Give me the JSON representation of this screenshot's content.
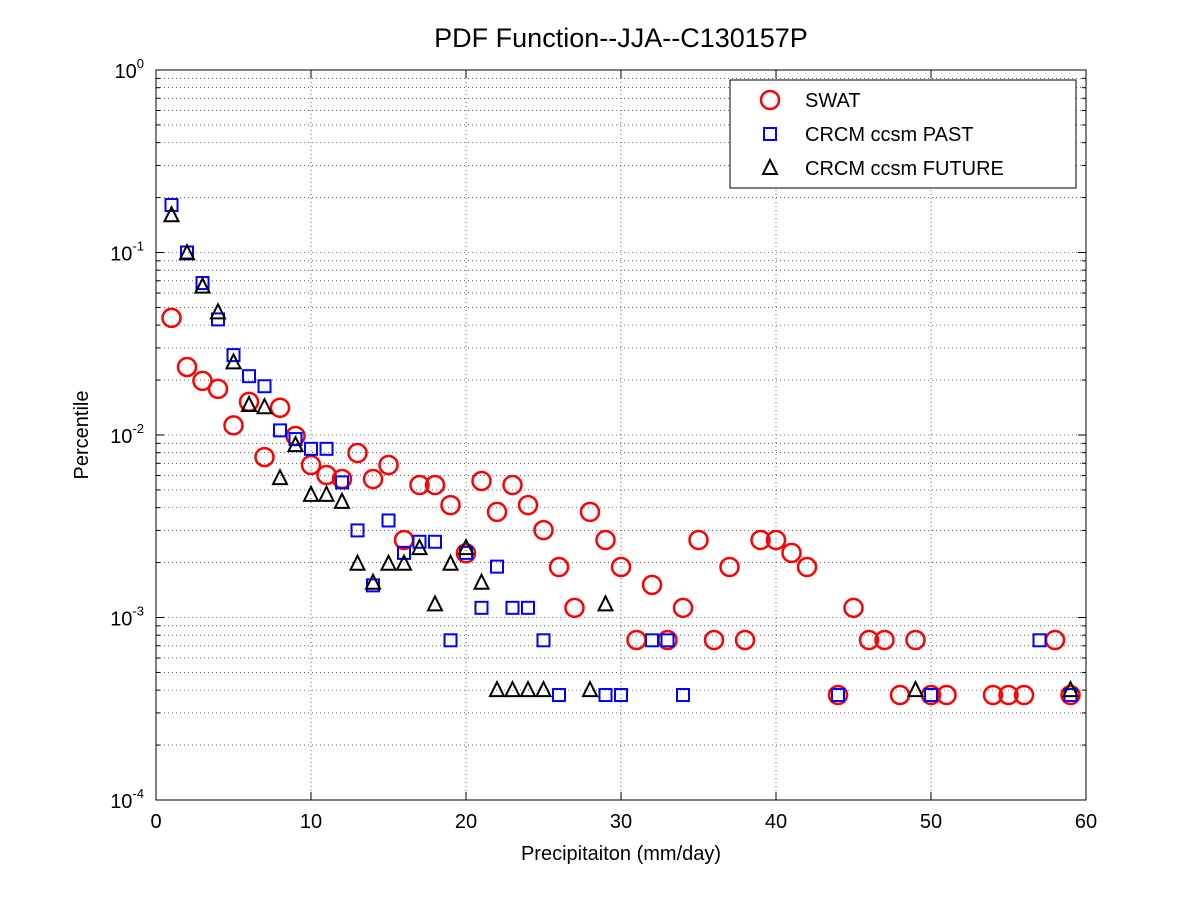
{
  "chart_data": {
    "type": "scatter",
    "title": "PDF Function--JJA--C130157P",
    "xlabel": "Precipitaiton (mm/day)",
    "ylabel": "Percentile",
    "xlim": [
      0,
      60
    ],
    "ylim": [
      0.0001,
      1
    ],
    "yscale": "log",
    "xticks": [
      "0",
      "10",
      "20",
      "30",
      "40",
      "50",
      "60"
    ],
    "yticks": [
      {
        "base": "10",
        "exp": "0"
      },
      {
        "base": "10",
        "exp": "-1"
      },
      {
        "base": "10",
        "exp": "-2"
      },
      {
        "base": "10",
        "exp": "-3"
      },
      {
        "base": "10",
        "exp": "-4"
      }
    ],
    "grid": true,
    "legend_position": "top-right",
    "series": [
      {
        "name": "SWAT",
        "marker": "circle",
        "color": "#ff0000",
        "x": [
          1,
          2,
          3,
          4,
          5,
          6,
          7,
          8,
          9,
          10,
          11,
          12,
          13,
          14,
          15,
          16,
          17,
          18,
          19,
          20,
          21,
          22,
          23,
          24,
          25,
          26,
          27,
          28,
          29,
          30,
          31,
          32,
          33,
          34,
          35,
          36,
          37,
          38,
          39,
          40,
          41,
          42,
          44,
          45,
          46,
          47,
          48,
          49,
          50,
          51,
          54,
          55,
          56,
          58,
          59
        ],
        "y": [
          0.0438,
          0.0236,
          0.0198,
          0.0179,
          0.0113,
          0.0152,
          0.00757,
          0.0141,
          0.00988,
          0.00685,
          0.00604,
          0.00574,
          0.00797,
          0.00574,
          0.00685,
          0.00266,
          0.00532,
          0.00532,
          0.00413,
          0.00225,
          0.0056,
          0.00379,
          0.00532,
          0.00413,
          0.00301,
          0.00189,
          0.00113,
          0.00379,
          0.00266,
          0.00189,
          0.000753,
          0.00151,
          0.000753,
          0.00113,
          0.00266,
          0.000753,
          0.00189,
          0.000753,
          0.00266,
          0.00266,
          0.00226,
          0.00189,
          0.000376,
          0.00113,
          0.000753,
          0.000753,
          0.000376,
          0.000753,
          0.000376,
          0.000376,
          0.000376,
          0.000376,
          0.000376,
          0.000753,
          0.000376
        ]
      },
      {
        "name": "CRCM ccsm PAST",
        "marker": "square",
        "color": "#0000ff",
        "x": [
          1,
          2,
          3,
          4,
          5,
          6,
          7,
          8,
          9,
          10,
          11,
          12,
          13,
          14,
          15,
          16,
          17,
          18,
          19,
          20,
          21,
          22,
          23,
          24,
          25,
          26,
          29,
          30,
          32,
          33,
          34,
          44,
          50,
          57,
          59
        ],
        "y": [
          0.182,
          0.1,
          0.068,
          0.043,
          0.0274,
          0.021,
          0.0185,
          0.0106,
          0.0095,
          0.0084,
          0.0084,
          0.0055,
          0.003,
          0.0015,
          0.0034,
          0.00226,
          0.0026,
          0.0026,
          0.00075,
          0.00226,
          0.00113,
          0.0019,
          0.00113,
          0.00113,
          0.00075,
          0.000376,
          0.000376,
          0.000376,
          0.00075,
          0.00075,
          0.000376,
          0.000376,
          0.000376,
          0.00075,
          0.000376
        ]
      },
      {
        "name": "CRCM ccsm FUTURE",
        "marker": "triangle",
        "color": "#000000",
        "x": [
          1,
          2,
          3,
          4,
          5,
          6,
          7,
          8,
          9,
          10,
          11,
          12,
          13,
          14,
          15,
          16,
          17,
          18,
          19,
          20,
          21,
          22,
          23,
          24,
          25,
          28,
          29,
          49,
          59
        ],
        "y": [
          0.16,
          0.099,
          0.065,
          0.047,
          0.025,
          0.0146,
          0.0142,
          0.0058,
          0.0088,
          0.0047,
          0.0047,
          0.0043,
          0.00197,
          0.00155,
          0.00197,
          0.00197,
          0.0024,
          0.00118,
          0.00197,
          0.0024,
          0.00155,
          0.0004,
          0.0004,
          0.0004,
          0.0004,
          0.0004,
          0.00118,
          0.0004,
          0.0004
        ]
      }
    ]
  }
}
